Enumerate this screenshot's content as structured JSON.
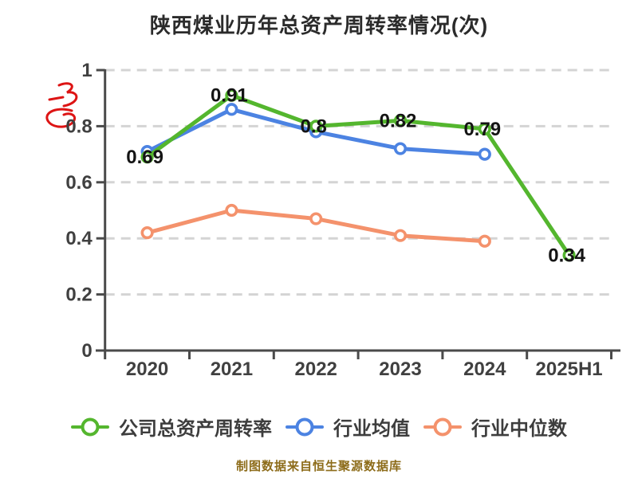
{
  "title": "陕西煤业历年总资产周转率情况(次)",
  "footer": "制图数据来自恒生聚源数据库",
  "colors": {
    "title_text": "#2b2b2b",
    "axis": "#4a4a4a",
    "grid": "#d4d4d4",
    "tick_text": "#404040",
    "data_label": "#141414",
    "legend_text": "#3d3d3d",
    "footer_text": "#8d6c1a",
    "seal_red": "#dd1414",
    "series_company": "#54b62e",
    "series_industry_mean": "#4c83e2",
    "series_industry_median": "#f4926c"
  },
  "chart_data": {
    "type": "line",
    "title": "陕西煤业历年总资产周转率情况(次)",
    "categories": [
      "2020",
      "2021",
      "2022",
      "2023",
      "2024",
      "2025H1"
    ],
    "series": [
      {
        "name": "公司总资产周转率",
        "color": "#54b62e",
        "values": [
          0.69,
          0.91,
          0.8,
          0.82,
          0.79,
          0.34
        ],
        "point_labels": [
          "0.69",
          "0.91",
          "0.8",
          "0.82",
          "0.79",
          "0.34"
        ]
      },
      {
        "name": "行业均值",
        "color": "#4c83e2",
        "values": [
          0.71,
          0.86,
          0.78,
          0.72,
          0.7,
          null
        ],
        "point_labels": null
      },
      {
        "name": "行业中位数",
        "color": "#f4926c",
        "values": [
          0.42,
          0.5,
          0.47,
          0.41,
          0.39,
          null
        ],
        "point_labels": null
      }
    ],
    "ylim": [
      0,
      1
    ],
    "yticks": [
      0,
      0.2,
      0.4,
      0.6,
      0.8,
      1
    ],
    "grid": "horizontal-dashed",
    "legend_position": "bottom",
    "value_labels_on": "公司总资产周转率"
  }
}
